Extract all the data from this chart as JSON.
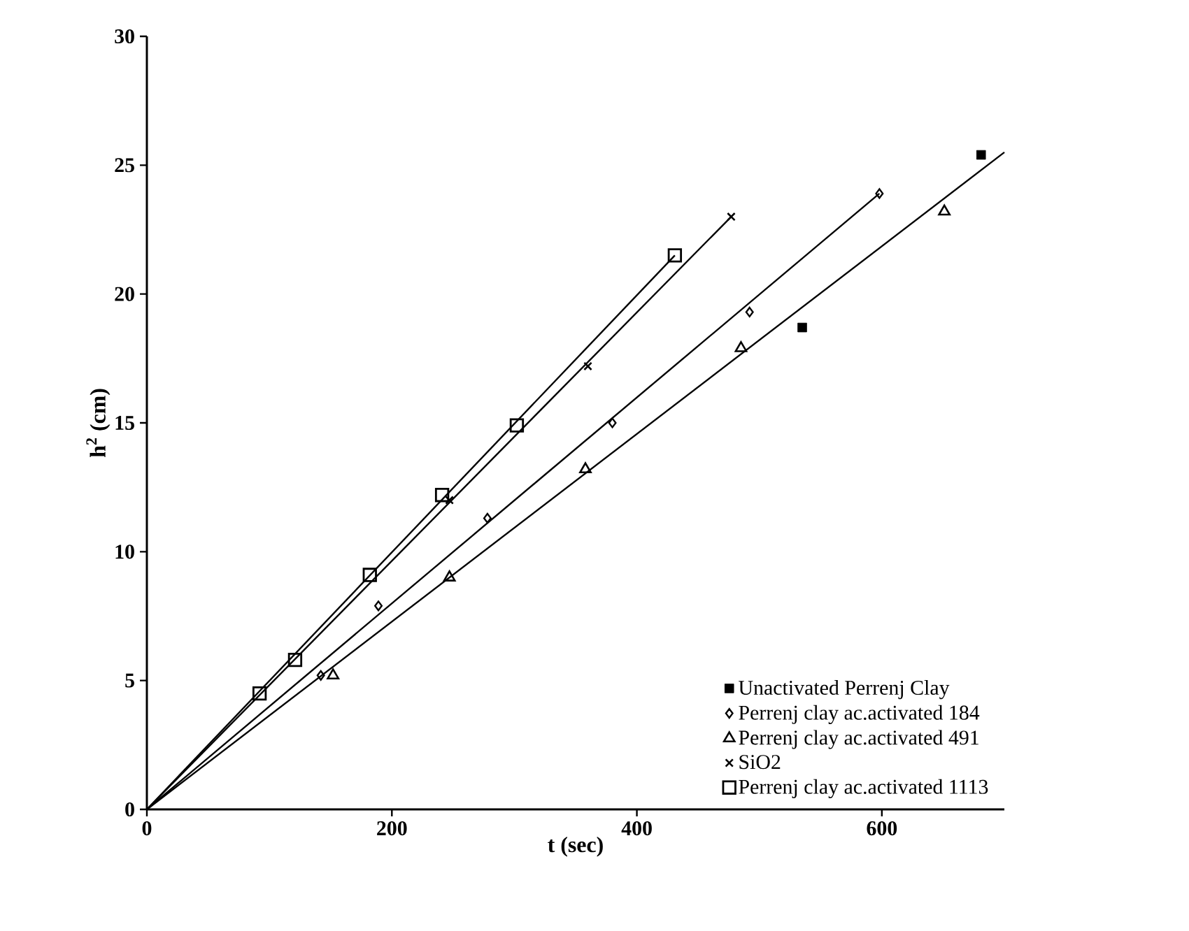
{
  "chart_data": {
    "type": "scatter",
    "xlabel": "t (sec)",
    "ylabel": "h$^{2}$ (cm)",
    "xlim": [
      0,
      700
    ],
    "ylim": [
      0,
      30
    ],
    "xticks": [
      0,
      200,
      400,
      600
    ],
    "yticks": [
      0,
      5,
      10,
      15,
      20,
      25,
      30
    ],
    "grid": false,
    "legend": "bottom right",
    "series": [
      {
        "name": "Unactivated Perrenj Clay",
        "color": "#000000",
        "marker": "square",
        "x": [
          535,
          681
        ],
        "values": [
          18.7,
          25.4
        ]
      },
      {
        "name": "Perrenj clay ac.activated  184",
        "color": "#000000",
        "marker": "diamond",
        "x": [
          142,
          189,
          278,
          380,
          492,
          598
        ],
        "values": [
          5.2,
          7.9,
          11.3,
          15.0,
          19.3,
          23.9
        ]
      },
      {
        "name": "Perrenj clay ac.activated  491",
        "color": "#000000",
        "marker": "triangle",
        "x": [
          152,
          247,
          358,
          485,
          651
        ],
        "values": [
          5.2,
          9.0,
          13.2,
          17.9,
          23.2
        ]
      },
      {
        "name": "SiO2",
        "color": "#000000",
        "marker": "cross",
        "x": [
          247,
          360,
          477
        ],
        "values": [
          12.0,
          17.2,
          23.0
        ]
      },
      {
        "name": "Perrenj clay ac.activated  1113",
        "color": "#000000",
        "marker": "square",
        "x": [
          92,
          121,
          182,
          241,
          302,
          431
        ],
        "values": [
          4.5,
          5.8,
          9.1,
          12.2,
          14.9,
          21.5
        ]
      },
      {
        "type": "line",
        "color": "#000000",
        "marker": "none",
        "x": [
          0,
          700
        ],
        "values": [
          0,
          25.5
        ]
      },
      {
        "type": "line",
        "color": "#000000",
        "marker": "none",
        "x": [
          0,
          598
        ],
        "values": [
          0,
          23.9
        ]
      },
      {
        "type": "line",
        "color": "#000000",
        "marker": "none",
        "x": [
          0,
          477
        ],
        "values": [
          0,
          23.0
        ]
      },
      {
        "type": "line",
        "color": "#000000",
        "marker": "none",
        "x": [
          0,
          431
        ],
        "values": [
          0,
          21.5
        ]
      }
    ]
  }
}
